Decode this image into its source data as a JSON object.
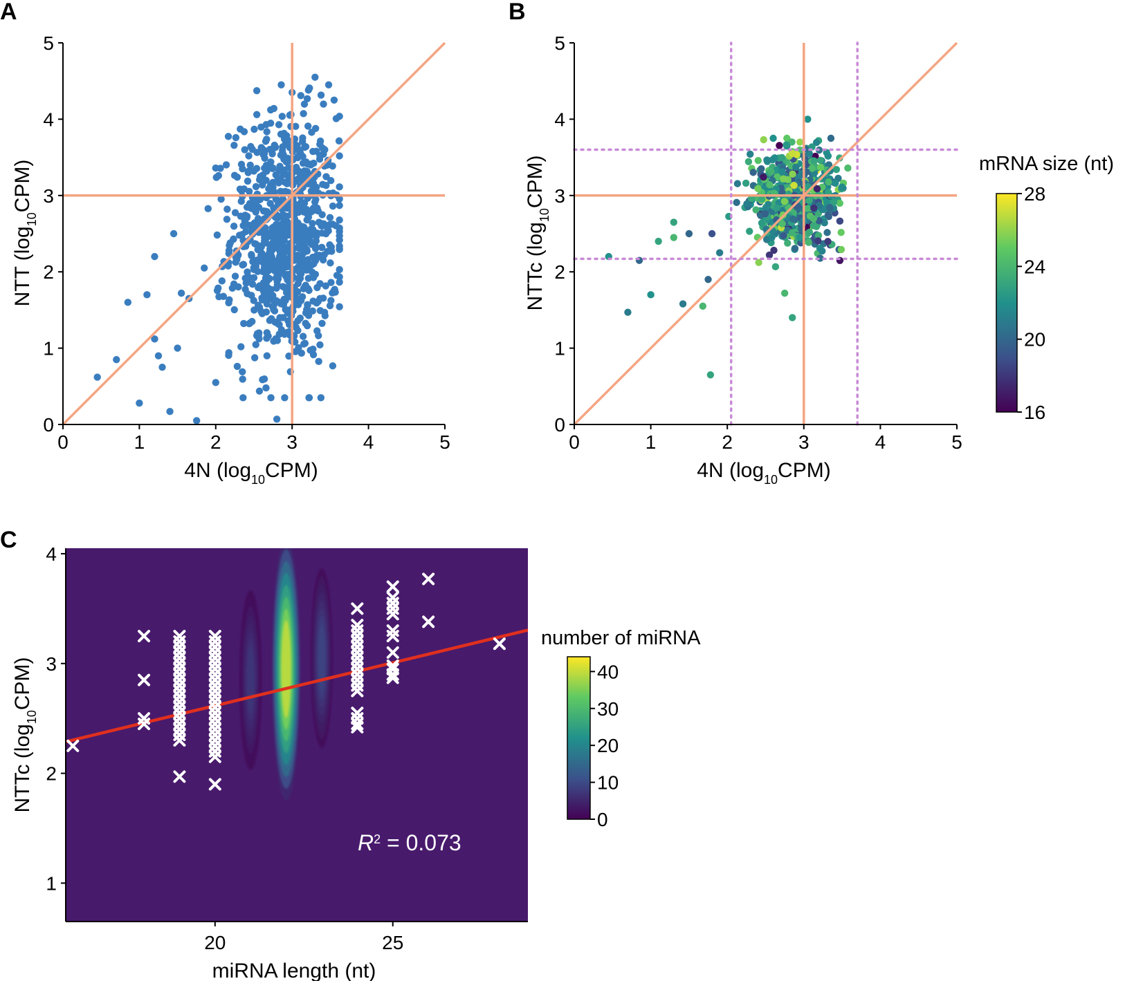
{
  "chart_data": [
    {
      "panel": "A",
      "type": "scatter",
      "xlabel": {
        "main": "4N (log",
        "sub": "10",
        "tail": "CPM)"
      },
      "ylabel": {
        "main": "NTT (log",
        "sub": "10",
        "tail": "CPM)"
      },
      "xlim": [
        0,
        5
      ],
      "ylim": [
        0,
        5
      ],
      "xticks": [
        "0",
        "1",
        "2",
        "3",
        "4",
        "5"
      ],
      "yticks": [
        "0",
        "1",
        "2",
        "3",
        "4",
        "5"
      ],
      "point_color": "#3a7dbf",
      "reference_color": "#f4a582",
      "reference_lines": {
        "vertical": 3,
        "horizontal": 3,
        "diagonal": true
      },
      "cloud": {
        "n": 900,
        "x_mean": 2.9,
        "x_sd": 0.35,
        "y_mean": 2.45,
        "y_sd": 0.8
      },
      "outliers": [
        [
          0.45,
          0.62
        ],
        [
          0.7,
          0.85
        ],
        [
          0.85,
          1.6
        ],
        [
          1.0,
          0.28
        ],
        [
          1.1,
          1.7
        ],
        [
          1.2,
          1.12
        ],
        [
          1.25,
          0.9
        ],
        [
          1.3,
          0.75
        ],
        [
          1.4,
          0.17
        ],
        [
          1.45,
          2.5
        ],
        [
          1.55,
          1.72
        ],
        [
          1.65,
          1.65
        ],
        [
          1.75,
          0.05
        ],
        [
          1.85,
          2.05
        ],
        [
          2.0,
          0.55
        ],
        [
          1.5,
          1.0
        ],
        [
          1.2,
          2.2
        ],
        [
          3.3,
          4.55
        ],
        [
          3.55,
          4.25
        ],
        [
          2.35,
          3.35
        ],
        [
          2.8,
          0.07
        ],
        [
          3.0,
          4.35
        ]
      ]
    },
    {
      "panel": "B",
      "type": "scatter",
      "xlabel": {
        "main": "4N (log",
        "sub": "10",
        "tail": "CPM)"
      },
      "ylabel": {
        "main": "NTTc (log",
        "sub": "10",
        "tail": "CPM)"
      },
      "xlim": [
        0,
        5
      ],
      "ylim": [
        0,
        5
      ],
      "xticks": [
        "0",
        "1",
        "2",
        "3",
        "4",
        "5"
      ],
      "yticks": [
        "0",
        "1",
        "2",
        "3",
        "4",
        "5"
      ],
      "reference_color": "#f4a582",
      "threshold_color": "#c88ad6",
      "reference_lines": {
        "vertical": 3,
        "horizontal": 3,
        "diagonal": true
      },
      "dotted_thresholds": {
        "x": [
          2.05,
          3.7
        ],
        "y": [
          2.17,
          3.6
        ]
      },
      "cloud": {
        "n": 700,
        "x_mean": 2.9,
        "x_sd": 0.28,
        "y_mean": 2.95,
        "y_sd": 0.3,
        "size_mean": 22,
        "size_sd": 2.2
      },
      "outliers": [
        [
          0.45,
          2.2,
          22
        ],
        [
          0.7,
          1.47,
          21
        ],
        [
          0.85,
          2.15,
          20
        ],
        [
          1.0,
          1.7,
          22
        ],
        [
          1.1,
          2.4,
          23
        ],
        [
          1.3,
          2.45,
          24
        ],
        [
          1.3,
          2.65,
          23
        ],
        [
          1.42,
          1.58,
          21
        ],
        [
          1.5,
          2.5,
          20
        ],
        [
          1.68,
          1.55,
          24
        ],
        [
          1.75,
          1.9,
          20
        ],
        [
          1.78,
          0.65,
          23
        ],
        [
          1.8,
          2.5,
          19
        ],
        [
          1.9,
          2.25,
          21
        ],
        [
          2.85,
          1.4,
          23
        ],
        [
          2.75,
          1.72,
          24
        ],
        [
          3.05,
          4.0,
          22
        ],
        [
          2.6,
          3.75,
          22
        ],
        [
          2.55,
          2.22,
          18
        ],
        [
          2.85,
          3.55,
          27
        ],
        [
          2.95,
          3.7,
          26
        ]
      ],
      "colorbar": {
        "title": "mRNA size (nt)",
        "min": 16,
        "max": 28,
        "ticks": [
          "16",
          "20",
          "24",
          "28"
        ]
      }
    },
    {
      "panel": "C",
      "type": "scatter",
      "xlabel": "miRNA length (nt)",
      "ylabel": {
        "main": "NTTc (log",
        "sub": "10",
        "tail": "CPM)"
      },
      "xlim": [
        15.8,
        28.8
      ],
      "ylim": [
        0.65,
        4.05
      ],
      "xticks": [
        "20",
        "25"
      ],
      "yticks": [
        "1",
        "2",
        "3",
        "4"
      ],
      "background_color": "#481a6c",
      "marker_color": "#ffffff",
      "fit_line": {
        "color": "#e0301e",
        "intercept": 1.052,
        "slope": 0.0782
      },
      "annotation": {
        "symbol": "R",
        "superscript": "2",
        "text": " = 0.073"
      },
      "points": [
        [
          16,
          2.25
        ],
        [
          18,
          3.25
        ],
        [
          18,
          2.85
        ],
        [
          18,
          2.45
        ],
        [
          18,
          2.5
        ],
        [
          19,
          3.25
        ],
        [
          19,
          3.2
        ],
        [
          19,
          3.15
        ],
        [
          19,
          3.1
        ],
        [
          19,
          3.05
        ],
        [
          19,
          3.0
        ],
        [
          19,
          2.95
        ],
        [
          19,
          2.9
        ],
        [
          19,
          2.85
        ],
        [
          19,
          2.8
        ],
        [
          19,
          2.75
        ],
        [
          19,
          2.7
        ],
        [
          19,
          2.65
        ],
        [
          19,
          2.6
        ],
        [
          19,
          2.55
        ],
        [
          19,
          2.5
        ],
        [
          19,
          2.45
        ],
        [
          19,
          2.4
        ],
        [
          19,
          2.35
        ],
        [
          19,
          2.3
        ],
        [
          19,
          1.97
        ],
        [
          20,
          3.25
        ],
        [
          20,
          3.2
        ],
        [
          20,
          3.15
        ],
        [
          20,
          3.1
        ],
        [
          20,
          3.05
        ],
        [
          20,
          3.0
        ],
        [
          20,
          2.95
        ],
        [
          20,
          2.9
        ],
        [
          20,
          2.85
        ],
        [
          20,
          2.8
        ],
        [
          20,
          2.75
        ],
        [
          20,
          2.7
        ],
        [
          20,
          2.65
        ],
        [
          20,
          2.6
        ],
        [
          20,
          2.55
        ],
        [
          20,
          2.5
        ],
        [
          20,
          2.45
        ],
        [
          20,
          2.4
        ],
        [
          20,
          2.35
        ],
        [
          20,
          2.3
        ],
        [
          20,
          2.25
        ],
        [
          20,
          2.2
        ],
        [
          20,
          2.15
        ],
        [
          20,
          1.9
        ],
        [
          24,
          3.5
        ],
        [
          24,
          3.35
        ],
        [
          24,
          3.3
        ],
        [
          24,
          3.25
        ],
        [
          24,
          3.2
        ],
        [
          24,
          3.15
        ],
        [
          24,
          3.1
        ],
        [
          24,
          3.05
        ],
        [
          24,
          3.0
        ],
        [
          24,
          2.95
        ],
        [
          24,
          2.9
        ],
        [
          24,
          2.85
        ],
        [
          24,
          2.8
        ],
        [
          24,
          2.75
        ],
        [
          24,
          2.55
        ],
        [
          24,
          2.5
        ],
        [
          24,
          2.45
        ],
        [
          24,
          2.42
        ],
        [
          25,
          3.7
        ],
        [
          25,
          3.6
        ],
        [
          25,
          3.55
        ],
        [
          25,
          3.5
        ],
        [
          25,
          3.45
        ],
        [
          25,
          3.3
        ],
        [
          25,
          3.25
        ],
        [
          25,
          3.1
        ],
        [
          25,
          2.98
        ],
        [
          25,
          2.95
        ],
        [
          25,
          2.9
        ],
        [
          25,
          2.87
        ],
        [
          26,
          3.77
        ],
        [
          26,
          3.38
        ],
        [
          28,
          3.18
        ]
      ],
      "density_peaks": [
        {
          "x": 21,
          "y": 2.85,
          "level": 8
        },
        {
          "x": 22,
          "y": 2.95,
          "level": 44
        },
        {
          "x": 23,
          "y": 3.05,
          "level": 10
        }
      ],
      "colorbar": {
        "title": "number of miRNA",
        "min": 0,
        "max": 44,
        "ticks": [
          "0",
          "10",
          "20",
          "30",
          "40"
        ]
      }
    }
  ]
}
